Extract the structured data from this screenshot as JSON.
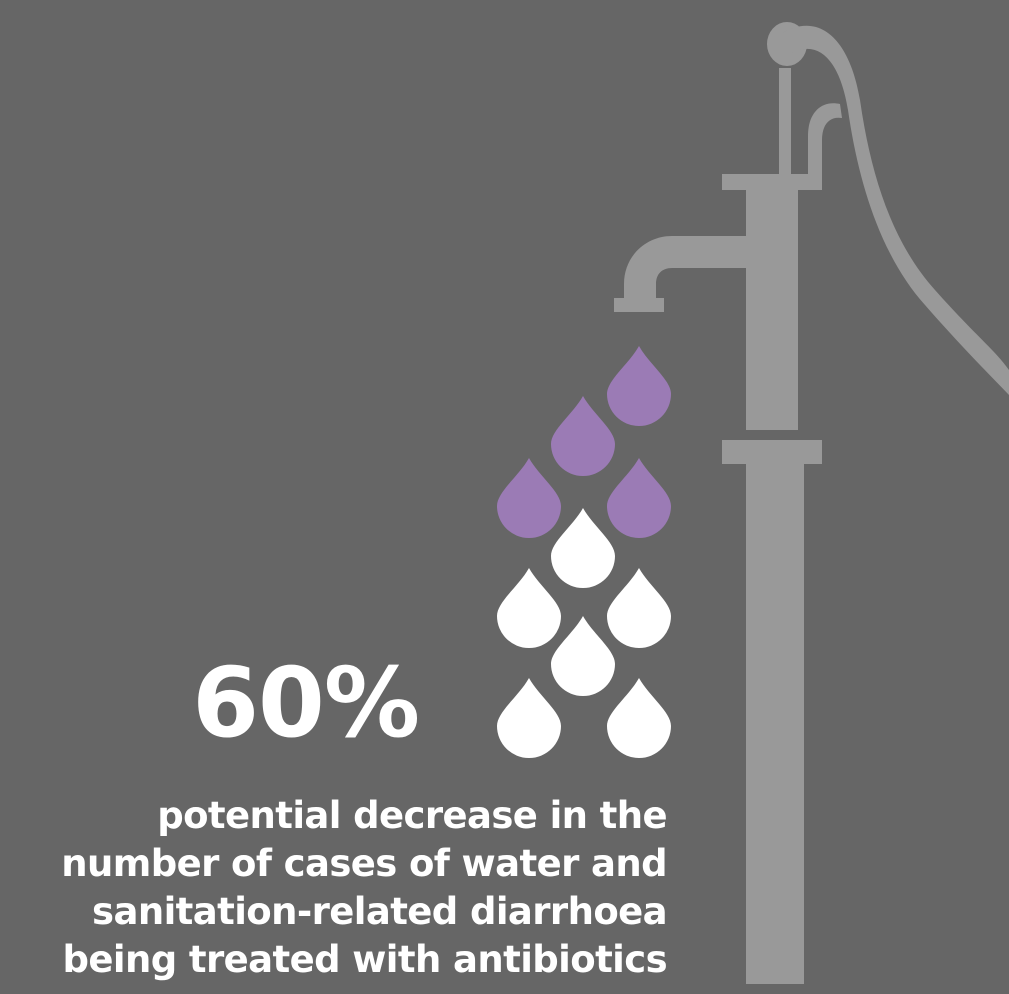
{
  "stat": {
    "value": "60%",
    "caption_lines": [
      "potential decrease in the",
      "number of cases of water and",
      "sanitation-related diarrhoea",
      "being treated with antibiotics"
    ]
  },
  "drops": {
    "total": 10,
    "highlighted": 4,
    "highlight_fraction": 0.4,
    "highlight_color": "#9b7bb5",
    "base_color": "#ffffff"
  },
  "colors": {
    "background": "#666666",
    "pump": "#999999",
    "text": "#ffffff"
  },
  "icons": {
    "pump": "water-pump-icon",
    "drop": "water-drop-icon"
  }
}
